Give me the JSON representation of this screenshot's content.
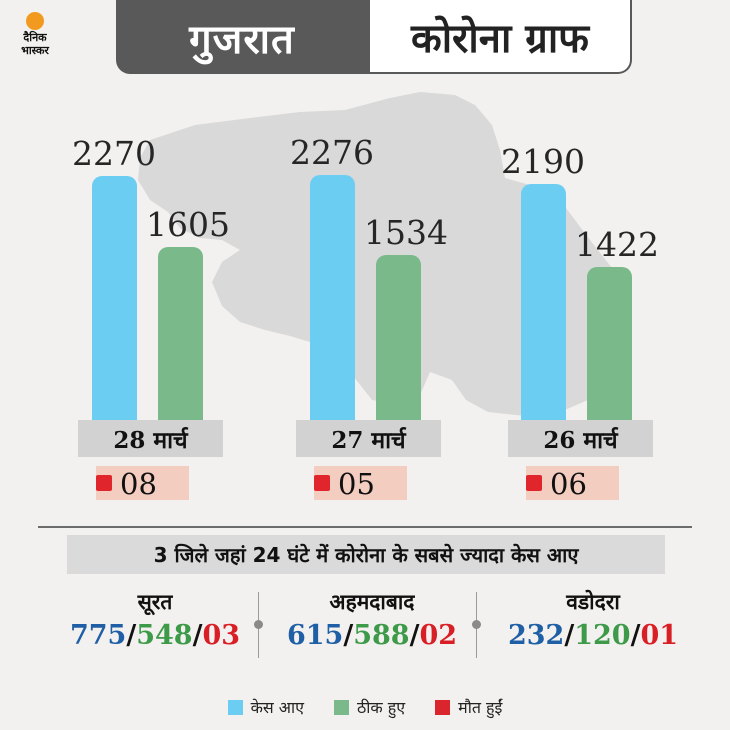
{
  "brand": {
    "logo_line1": "दैनिक",
    "logo_line2": "भास्कर",
    "sun_color": "#f29a1f"
  },
  "header": {
    "state": "गुजरात",
    "topic": "कोरोना ग्राफ"
  },
  "colors": {
    "cases": "#6ccdf3",
    "recovered": "#7ab98a",
    "deaths": "#e0262c"
  },
  "chart_data": {
    "type": "bar",
    "categories": [
      "28 मार्च",
      "27 मार्च",
      "26 मार्च"
    ],
    "ylim": [
      0,
      2500
    ],
    "series": [
      {
        "name": "केस आए",
        "values": [
          2270,
          2276,
          2190
        ]
      },
      {
        "name": "ठीक हुए",
        "values": [
          1605,
          1534,
          1422
        ]
      },
      {
        "name": "मौत हुईं",
        "values": [
          "08",
          "05",
          "06"
        ]
      }
    ],
    "legend": "bottom"
  },
  "districts": {
    "title": "3 जिले जहां 24 घंटे में कोरोना के सबसे ज्यादा केस आए",
    "items": [
      {
        "name": "सूरत",
        "cases": "775",
        "recovered": "548",
        "deaths": "03"
      },
      {
        "name": "अहमदाबाद",
        "cases": "615",
        "recovered": "588",
        "deaths": "02"
      },
      {
        "name": "वडोदरा",
        "cases": "232",
        "recovered": "120",
        "deaths": "01"
      }
    ],
    "separator": "/"
  },
  "legend": {
    "cases": "केस आए",
    "recovered": "ठीक हुए",
    "deaths": "मौत हुईं"
  }
}
